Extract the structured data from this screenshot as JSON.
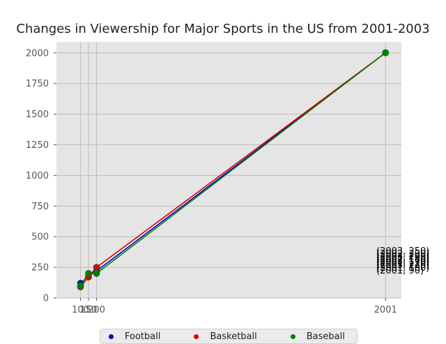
{
  "chart_data": {
    "type": "line",
    "title": "Changes in Viewership for Major Sports in the US from 2001-2003",
    "xlabel": "",
    "ylabel": "",
    "xlim": [
      -50,
      2100
    ],
    "ylim": [
      0,
      2090
    ],
    "x_ticks": [
      100,
      150,
      200,
      2001
    ],
    "x_tick_labels": [
      "100",
      "150",
      "200",
      "2001"
    ],
    "y_ticks": [
      0,
      250,
      500,
      750,
      1000,
      1250,
      1500,
      1750,
      2000
    ],
    "grid": true,
    "legend_position": "bottom-center",
    "series": [
      {
        "name": "Football",
        "color": "#0000cc",
        "points": [
          [
            100,
            120
          ],
          [
            150,
            180
          ],
          [
            200,
            220
          ],
          [
            2001,
            2001
          ]
        ]
      },
      {
        "name": "Basketball",
        "color": "#dd0000",
        "points": [
          [
            100,
            90
          ],
          [
            150,
            170
          ],
          [
            200,
            250
          ],
          [
            2001,
            2001
          ]
        ]
      },
      {
        "name": "Baseball",
        "color": "#008000",
        "points": [
          [
            100,
            100
          ],
          [
            150,
            200
          ],
          [
            200,
            200
          ],
          [
            2001,
            2001
          ]
        ]
      }
    ],
    "annotations": [
      "(2003, 250)",
      "(2002, 200)",
      "(2003, 200)",
      "(2002, 180)",
      "(2002, 170)",
      "(2001, 120)",
      "(2003, 220)",
      "(2001, 100)",
      "(2001, 90)"
    ]
  }
}
